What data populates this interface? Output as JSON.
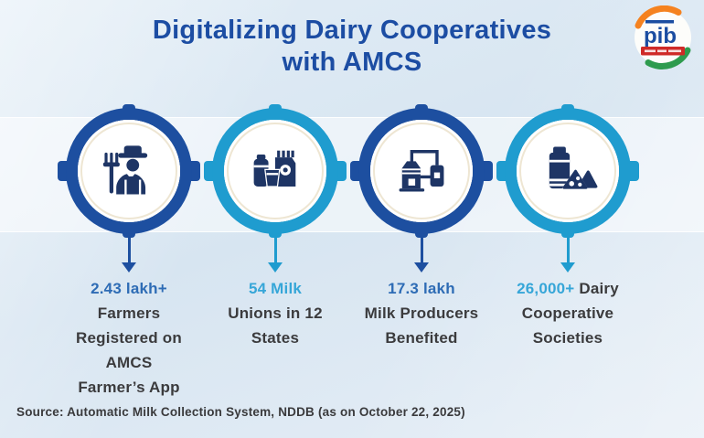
{
  "page": {
    "background_color": "#d9e6f2",
    "title_color": "#1c4da3",
    "body_text_color": "#3b3b3d",
    "icon_color": "#1e3565"
  },
  "header": {
    "title_line1": "Digitalizing Dairy Cooperatives",
    "title_line2": "with AMCS"
  },
  "logo": {
    "text": "pib",
    "text_color": "#1b4da1",
    "banner_color": "#cf2a27",
    "arc_orange": "#f5821f",
    "arc_green": "#2e9b4e"
  },
  "stats": [
    {
      "icon": "farmer-icon",
      "ring_color": "#1d4fa0",
      "accent_color": "#2e6cb5",
      "lines": [
        [
          {
            "text": "2.43 lakh+",
            "accent": true
          }
        ],
        [
          {
            "text": "Farmers",
            "accent": false
          }
        ],
        [
          {
            "text": "Registered on",
            "accent": false
          }
        ],
        [
          {
            "text": "AMCS",
            "accent": false
          }
        ],
        [
          {
            "text": "Farmer’s App",
            "accent": false
          }
        ]
      ]
    },
    {
      "icon": "dairy-products-icon",
      "ring_color": "#1f9ccf",
      "accent_color": "#36a6d8",
      "lines": [
        [
          {
            "text": "54 Milk",
            "accent": true
          }
        ],
        [
          {
            "text": "Unions in 12",
            "accent": false
          }
        ],
        [
          {
            "text": "States",
            "accent": false
          }
        ]
      ]
    },
    {
      "icon": "milk-plant-icon",
      "ring_color": "#1d4fa0",
      "accent_color": "#2e6cb5",
      "lines": [
        [
          {
            "text": "17.3 lakh",
            "accent": true
          }
        ],
        [
          {
            "text": "Milk Producers",
            "accent": false
          }
        ],
        [
          {
            "text": "Benefited",
            "accent": false
          }
        ]
      ]
    },
    {
      "icon": "milk-cheese-icon",
      "ring_color": "#1f9ccf",
      "accent_color": "#36a6d8",
      "lines": [
        [
          {
            "text": "26,000+",
            "accent": true
          },
          {
            "text": " Dairy",
            "accent": false
          }
        ],
        [
          {
            "text": "Cooperative",
            "accent": false
          }
        ],
        [
          {
            "text": "Societies",
            "accent": false
          }
        ]
      ]
    }
  ],
  "source": {
    "text": "Source: Automatic Milk Collection System, NDDB (as on October 22, 2025)",
    "color": "#3a3a3c"
  }
}
